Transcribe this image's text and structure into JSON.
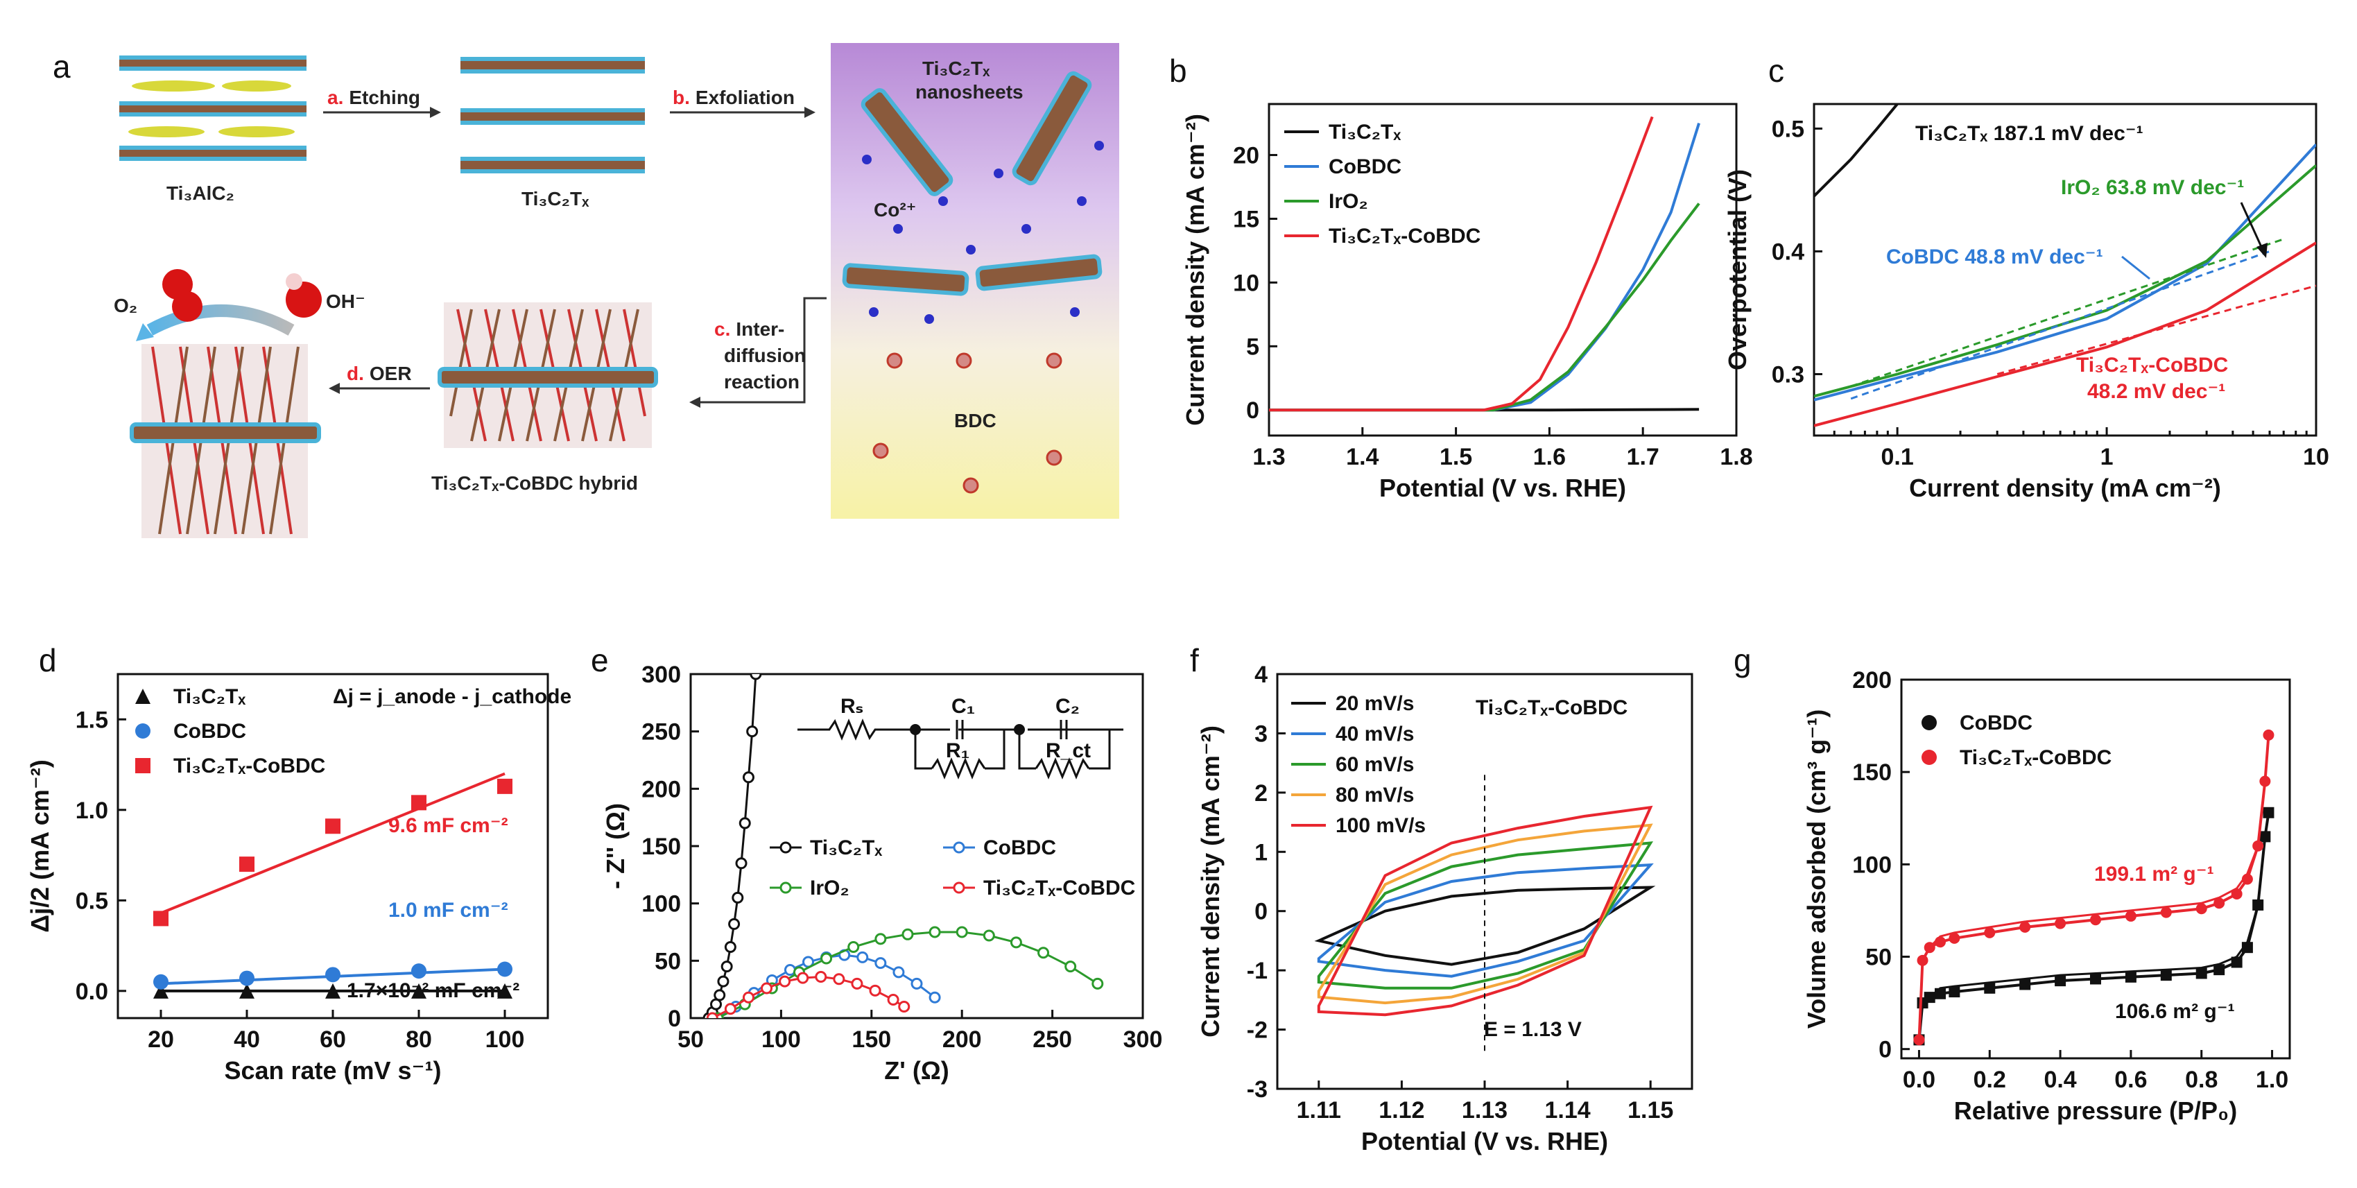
{
  "colors": {
    "black": "#111111",
    "blue": "#2f7bd6",
    "green": "#2b9a2b",
    "red": "#e8262f",
    "orange": "#f4a53a"
  },
  "panels": {
    "a": {
      "letter": "a",
      "steps": [
        {
          "label": "a.",
          "text": "Etching"
        },
        {
          "label": "b.",
          "text": "Exfoliation"
        },
        {
          "label": "c.",
          "text": "Inter-",
          "text2": "diffusion",
          "text3": "reaction"
        },
        {
          "label": "d.",
          "text": "OER"
        }
      ],
      "captions": {
        "max": "Ti₃AlC₂",
        "mxene": "Ti₃C₂Tₓ",
        "nanosheets": "Ti₃C₂Tₓ",
        "nanosheets2": "nanosheets",
        "co": "Co²⁺",
        "bdc": "BDC",
        "hybrid": "Ti₃C₂Tₓ-CoBDC hybrid",
        "o2": "O₂",
        "oh": "OH⁻"
      }
    },
    "b": {
      "letter": "b"
    },
    "c": {
      "letter": "c"
    },
    "d": {
      "letter": "d"
    },
    "e": {
      "letter": "e"
    },
    "f": {
      "letter": "f"
    },
    "g": {
      "letter": "g"
    }
  },
  "chart_data": [
    {
      "panel": "b",
      "type": "line",
      "xlabel": "Potential (V vs. RHE)",
      "ylabel": "Current density (mA cm⁻²)",
      "xlim": [
        1.3,
        1.8
      ],
      "ylim": [
        -2,
        24
      ],
      "xticks": [
        "1.3",
        "1.4",
        "1.5",
        "1.6",
        "1.7",
        "1.8"
      ],
      "yticks": [
        "0",
        "5",
        "10",
        "15",
        "20"
      ],
      "series": [
        {
          "name": "Ti₃C₂Tₓ",
          "color": "#111111",
          "x": [
            1.3,
            1.5,
            1.6,
            1.76
          ],
          "y": [
            0,
            0,
            0,
            0.05
          ]
        },
        {
          "name": "CoBDC",
          "color": "#2f7bd6",
          "x": [
            1.3,
            1.54,
            1.58,
            1.62,
            1.66,
            1.7,
            1.73,
            1.76
          ],
          "y": [
            0,
            0,
            0.6,
            2.8,
            6.4,
            11.0,
            15.5,
            22.5
          ]
        },
        {
          "name": "IrO₂",
          "color": "#2b9a2b",
          "x": [
            1.3,
            1.54,
            1.58,
            1.62,
            1.66,
            1.7,
            1.73,
            1.76
          ],
          "y": [
            0,
            0,
            0.8,
            3.0,
            6.5,
            10.2,
            13.3,
            16.2
          ]
        },
        {
          "name": "Ti₃C₂Tₓ-CoBDC",
          "color": "#e8262f",
          "x": [
            1.3,
            1.53,
            1.56,
            1.59,
            1.62,
            1.65,
            1.68,
            1.71
          ],
          "y": [
            0,
            0,
            0.5,
            2.4,
            6.5,
            11.6,
            17.2,
            23.0
          ]
        }
      ]
    },
    {
      "panel": "c",
      "type": "line",
      "xscale": "log",
      "xlabel": "Current density (mA cm⁻²)",
      "ylabel": "Overpotential (V)",
      "xlim": [
        0.04,
        10
      ],
      "ylim": [
        0.25,
        0.52
      ],
      "xticks": [
        "0.1",
        "1",
        "10"
      ],
      "yticks": [
        "0.3",
        "0.4",
        "0.5"
      ],
      "series": [
        {
          "name": "Ti₃C₂Tₓ",
          "color": "#111111",
          "x": [
            0.04,
            0.06,
            0.08,
            0.1
          ],
          "y": [
            0.445,
            0.475,
            0.5,
            0.52
          ]
        },
        {
          "name": "CoBDC",
          "color": "#2f7bd6",
          "x": [
            0.04,
            0.1,
            0.3,
            1,
            3,
            10
          ],
          "y": [
            0.279,
            0.297,
            0.318,
            0.345,
            0.39,
            0.487
          ]
        },
        {
          "name": "IrO₂",
          "color": "#2b9a2b",
          "x": [
            0.04,
            0.1,
            0.3,
            1,
            3,
            10
          ],
          "y": [
            0.282,
            0.3,
            0.324,
            0.352,
            0.392,
            0.47
          ]
        },
        {
          "name": "Ti₃C₂Tₓ-CoBDC",
          "color": "#e8262f",
          "x": [
            0.04,
            0.1,
            0.3,
            1,
            3,
            10
          ],
          "y": [
            0.258,
            0.276,
            0.298,
            0.322,
            0.352,
            0.407
          ]
        }
      ],
      "annotations": [
        {
          "text": "Ti₃C₂Tₓ 187.1 mV dec⁻¹",
          "color": "#111111"
        },
        {
          "text": "IrO₂ 63.8 mV dec⁻¹",
          "color": "#2b9a2b"
        },
        {
          "text": "CoBDC 48.8 mV dec⁻¹",
          "color": "#2f7bd6"
        },
        {
          "text": "Ti₃C₂Tₓ-CoBDC",
          "text2": "48.2 mV dec⁻¹",
          "color": "#e8262f"
        }
      ]
    },
    {
      "panel": "d",
      "type": "scatter",
      "xlabel": "Scan rate (mV s⁻¹)",
      "ylabel": "Δj/2 (mA cm⁻²)",
      "xlim": [
        10,
        110
      ],
      "ylim": [
        -0.15,
        1.75
      ],
      "xticks": [
        "20",
        "40",
        "60",
        "80",
        "100"
      ],
      "yticks": [
        "0.0",
        "0.5",
        "1.0",
        "1.5"
      ],
      "formula": "Δj = j_anode - j_cathode",
      "series": [
        {
          "name": "Ti₃C₂Tₓ",
          "color": "#111111",
          "marker": "triangle",
          "x": [
            20,
            40,
            60,
            80,
            100
          ],
          "y": [
            0.0,
            0.0,
            0.0,
            0.0,
            0.0
          ],
          "fit": [
            0.0,
            0.0017
          ],
          "label": "1.7×10⁻² mF cm⁻²"
        },
        {
          "name": "CoBDC",
          "color": "#2f7bd6",
          "marker": "circle",
          "x": [
            20,
            40,
            60,
            80,
            100
          ],
          "y": [
            0.05,
            0.07,
            0.09,
            0.11,
            0.12
          ],
          "fit": [
            0.04,
            0.08
          ],
          "label": "1.0 mF cm⁻²"
        },
        {
          "name": "Ti₃C₂Tₓ-CoBDC",
          "color": "#e8262f",
          "marker": "square",
          "x": [
            20,
            40,
            60,
            80,
            100
          ],
          "y": [
            0.4,
            0.7,
            0.91,
            1.04,
            1.13
          ],
          "fit": [
            0.43,
            0.77
          ],
          "label": "9.6 mF cm⁻²"
        }
      ]
    },
    {
      "panel": "e",
      "type": "scatter",
      "xlabel": "Z' (Ω)",
      "ylabel": "- Z'' (Ω)",
      "xlim": [
        50,
        300
      ],
      "ylim": [
        0,
        300
      ],
      "xticks": [
        "50",
        "100",
        "150",
        "200",
        "250",
        "300"
      ],
      "yticks": [
        "0",
        "50",
        "100",
        "150",
        "200",
        "250",
        "300"
      ],
      "circuit": {
        "rs": "Rₛ",
        "c1": "C₁",
        "r1": "R₁",
        "c2": "C₂",
        "rct": "R_ct"
      },
      "series": [
        {
          "name": "Ti₃C₂Tₓ",
          "color": "#111111",
          "x": [
            60,
            62,
            64,
            66,
            68,
            70,
            72,
            74,
            76,
            78,
            80,
            82,
            84,
            86
          ],
          "y": [
            0,
            5,
            12,
            20,
            32,
            45,
            62,
            82,
            105,
            135,
            170,
            210,
            250,
            300
          ]
        },
        {
          "name": "CoBDC",
          "color": "#2f7bd6",
          "x": [
            65,
            75,
            85,
            95,
            105,
            115,
            125,
            135,
            145,
            155,
            165,
            175,
            185
          ],
          "y": [
            0,
            10,
            22,
            33,
            42,
            49,
            53,
            55,
            53,
            48,
            40,
            30,
            18
          ]
        },
        {
          "name": "IrO₂",
          "color": "#2b9a2b",
          "x": [
            65,
            80,
            95,
            110,
            125,
            140,
            155,
            170,
            185,
            200,
            215,
            230,
            245,
            260,
            275
          ],
          "y": [
            0,
            12,
            26,
            40,
            52,
            62,
            69,
            73,
            75,
            75,
            72,
            66,
            57,
            45,
            30
          ]
        },
        {
          "name": "Ti₃C₂Tₓ-CoBDC",
          "color": "#e8262f",
          "x": [
            62,
            72,
            82,
            92,
            102,
            112,
            122,
            132,
            142,
            152,
            162,
            168
          ],
          "y": [
            0,
            8,
            18,
            26,
            32,
            35,
            36,
            34,
            30,
            24,
            16,
            10
          ]
        }
      ]
    },
    {
      "panel": "f",
      "type": "line",
      "xlabel": "Potential (V vs. RHE)",
      "ylabel": "Current density (mA cm⁻²)",
      "xlim": [
        1.105,
        1.155
      ],
      "ylim": [
        -3,
        4
      ],
      "xticks": [
        "1.11",
        "1.12",
        "1.13",
        "1.14",
        "1.15"
      ],
      "yticks": [
        "-3",
        "-2",
        "-1",
        "0",
        "1",
        "2",
        "3",
        "4"
      ],
      "title": "Ti₃C₂Tₓ-CoBDC",
      "marker_line": {
        "x": 1.13,
        "label": "E = 1.13 V"
      },
      "series": [
        {
          "name": "20 mV/s",
          "color": "#111111",
          "upper": [
            -0.5,
            0.0,
            0.25,
            0.35,
            0.38,
            0.4
          ],
          "lower": [
            -0.5,
            -0.75,
            -0.9,
            -0.7,
            -0.3,
            0.4
          ]
        },
        {
          "name": "40 mV/s",
          "color": "#2f7bd6",
          "upper": [
            -0.8,
            0.15,
            0.5,
            0.65,
            0.72,
            0.78
          ],
          "lower": [
            -0.85,
            -1.0,
            -1.1,
            -0.85,
            -0.5,
            0.78
          ]
        },
        {
          "name": "60 mV/s",
          "color": "#2b9a2b",
          "upper": [
            -1.1,
            0.3,
            0.75,
            0.95,
            1.05,
            1.15
          ],
          "lower": [
            -1.2,
            -1.3,
            -1.3,
            -1.05,
            -0.65,
            1.15
          ]
        },
        {
          "name": "80 mV/s",
          "color": "#f4a53a",
          "upper": [
            -1.35,
            0.45,
            0.95,
            1.2,
            1.35,
            1.45
          ],
          "lower": [
            -1.45,
            -1.55,
            -1.45,
            -1.15,
            -0.7,
            1.45
          ]
        },
        {
          "name": "100 mV/s",
          "color": "#e8262f",
          "upper": [
            -1.6,
            0.6,
            1.15,
            1.4,
            1.6,
            1.75
          ],
          "lower": [
            -1.7,
            -1.75,
            -1.6,
            -1.25,
            -0.75,
            1.75
          ]
        }
      ],
      "x": [
        1.11,
        1.118,
        1.126,
        1.134,
        1.142,
        1.15
      ]
    },
    {
      "panel": "g",
      "type": "line",
      "xlabel": "Relative pressure (P/P₀)",
      "ylabel": "Volume adsorbed (cm³ g⁻¹)",
      "xlim": [
        -0.05,
        1.05
      ],
      "ylim": [
        -5,
        200
      ],
      "xticks": [
        "0.0",
        "0.2",
        "0.4",
        "0.6",
        "0.8",
        "1.0"
      ],
      "yticks": [
        "0",
        "50",
        "100",
        "150",
        "200"
      ],
      "series": [
        {
          "name": "CoBDC",
          "color": "#111111",
          "x": [
            0.0,
            0.01,
            0.03,
            0.06,
            0.1,
            0.2,
            0.3,
            0.4,
            0.5,
            0.6,
            0.7,
            0.8,
            0.85,
            0.9,
            0.93,
            0.96,
            0.98,
            0.99
          ],
          "y": [
            5,
            25,
            28,
            30,
            31,
            33,
            35,
            37,
            38,
            39,
            40,
            41,
            43,
            47,
            55,
            78,
            115,
            128
          ],
          "label": "106.6 m² g⁻¹"
        },
        {
          "name": "Ti₃C₂Tₓ-CoBDC",
          "color": "#e8262f",
          "x": [
            0.0,
            0.01,
            0.03,
            0.06,
            0.1,
            0.2,
            0.3,
            0.4,
            0.5,
            0.6,
            0.7,
            0.8,
            0.85,
            0.9,
            0.93,
            0.96,
            0.98,
            0.99
          ],
          "y": [
            5,
            48,
            55,
            58,
            60,
            63,
            66,
            68,
            70,
            72,
            74,
            76,
            79,
            84,
            92,
            110,
            145,
            170
          ],
          "label": "199.1 m² g⁻¹"
        }
      ]
    }
  ]
}
